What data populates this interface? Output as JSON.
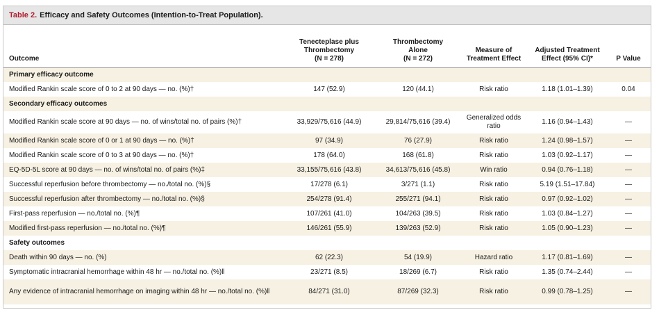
{
  "title": {
    "label": "Table 2.",
    "text": "Efficacy and Safety Outcomes (Intention-to-Treat Population)."
  },
  "columns": [
    "Outcome",
    "Tenecteplase plus Thrombectomy (N = 278)",
    "Thrombectomy Alone (N = 272)",
    "Measure of Treatment Effect",
    "Adjusted Treatment Effect (95% CI)*",
    "P Value"
  ],
  "column_lines": {
    "c1": [
      "Tenecteplase plus",
      "Thrombectomy",
      "(N = 278)"
    ],
    "c2": [
      "Thrombectomy",
      "Alone",
      "(N = 272)"
    ],
    "c3": [
      "Measure of",
      "Treatment Effect"
    ],
    "c4": [
      "Adjusted Treatment",
      "Effect (95% CI)*"
    ]
  },
  "sections": {
    "primary": "Primary efficacy outcome",
    "secondary": "Secondary efficacy outcomes",
    "safety": "Safety outcomes"
  },
  "rows": [
    {
      "outcome": "Modified Rankin scale score of 0 to 2 at 90 days — no. (%)†",
      "tnk": "147 (52.9)",
      "alone": "120 (44.1)",
      "measure": "Risk ratio",
      "effect": "1.18 (1.01–1.39)",
      "p": "0.04"
    },
    {
      "outcome": "Modified Rankin scale score at 90 days — no. of wins/total no. of pairs (%)†",
      "tnk": "33,929/75,616 (44.9)",
      "alone": "29,814/75,616 (39.4)",
      "measure": "Generalized odds ratio",
      "effect": "1.16 (0.94–1.43)",
      "p": "—"
    },
    {
      "outcome": "Modified Rankin scale score of 0 or 1 at 90 days — no. (%)†",
      "tnk": "97 (34.9)",
      "alone": "76 (27.9)",
      "measure": "Risk ratio",
      "effect": "1.24 (0.98–1.57)",
      "p": "—"
    },
    {
      "outcome": "Modified Rankin scale score of 0 to 3 at 90 days — no. (%)†",
      "tnk": "178 (64.0)",
      "alone": "168 (61.8)",
      "measure": "Risk ratio",
      "effect": "1.03 (0.92–1.17)",
      "p": "—"
    },
    {
      "outcome": "EQ-5D-5L score at 90 days — no. of wins/total no. of pairs (%)‡",
      "tnk": "33,155/75,616 (43.8)",
      "alone": "34,613/75,616 (45.8)",
      "measure": "Win ratio",
      "effect": "0.94 (0.76–1.18)",
      "p": "—"
    },
    {
      "outcome": "Successful reperfusion before thrombectomy — no./total no. (%)§",
      "tnk": "17/278 (6.1)",
      "alone": "3/271 (1.1)",
      "measure": "Risk ratio",
      "effect": "5.19 (1.51–17.84)",
      "p": "—"
    },
    {
      "outcome": "Successful reperfusion after thrombectomy — no./total no. (%)§",
      "tnk": "254/278 (91.4)",
      "alone": "255/271 (94.1)",
      "measure": "Risk ratio",
      "effect": "0.97 (0.92–1.02)",
      "p": "—"
    },
    {
      "outcome": "First-pass reperfusion — no./total no. (%)¶",
      "tnk": "107/261 (41.0)",
      "alone": "104/263 (39.5)",
      "measure": "Risk ratio",
      "effect": "1.03 (0.84–1.27)",
      "p": "—"
    },
    {
      "outcome": "Modified first-pass reperfusion — no./total no. (%)¶",
      "tnk": "146/261 (55.9)",
      "alone": "139/263 (52.9)",
      "measure": "Risk ratio",
      "effect": "1.05 (0.90–1.23)",
      "p": "—"
    },
    {
      "outcome": "Death within 90 days — no. (%)",
      "tnk": "62 (22.3)",
      "alone": "54 (19.9)",
      "measure": "Hazard ratio",
      "effect": "1.17 (0.81–1.69)",
      "p": "—"
    },
    {
      "outcome": "Symptomatic intracranial hemorrhage within 48 hr — no./total no. (%)‖",
      "tnk": "23/271 (8.5)",
      "alone": "18/269 (6.7)",
      "measure": "Risk ratio",
      "effect": "1.35 (0.74–2.44)",
      "p": "—"
    },
    {
      "outcome": "Any evidence of intracranial hemorrhage on imaging within 48 hr — no./total no. (%)‖",
      "tnk": "84/271 (31.0)",
      "alone": "87/269 (32.3)",
      "measure": "Risk ratio",
      "effect": "0.99 (0.78–1.25)",
      "p": "—"
    }
  ],
  "colors": {
    "title_label": "#b01c2e",
    "title_bar": "#e6e6e6",
    "row_shade": "#f7f1e3"
  }
}
